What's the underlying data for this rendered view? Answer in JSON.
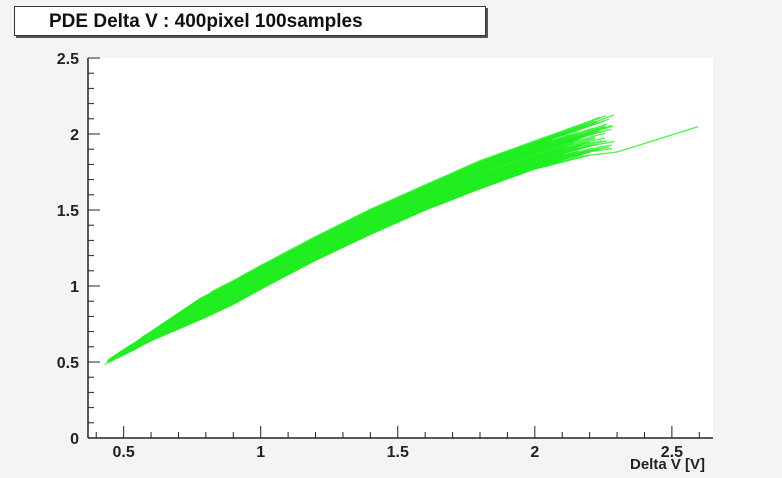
{
  "chart_data": {
    "type": "line",
    "title": "PDE Delta V : 400pixel 100samples",
    "xlabel": "Delta V [V]",
    "ylabel": "",
    "xlim": [
      0.37,
      2.65
    ],
    "ylim": [
      0,
      2.5
    ],
    "xticks": [
      "0.5",
      "1",
      "1.5",
      "2",
      "2.5"
    ],
    "xtick_values": [
      0.5,
      1,
      1.5,
      2,
      2.5
    ],
    "yticks": [
      "0",
      "0.5",
      "1",
      "1.5",
      "2",
      "2.5"
    ],
    "ytick_values": [
      0,
      0.5,
      1,
      1.5,
      2,
      2.5
    ],
    "grid": false,
    "series_color": "#22ee22",
    "series_count": 100,
    "band": {
      "x": [
        0.43,
        0.6,
        0.78,
        0.9,
        1.0,
        1.2,
        1.4,
        1.6,
        1.8,
        2.0,
        2.2,
        2.3,
        2.6
      ],
      "y_low": [
        0.48,
        0.64,
        0.78,
        0.88,
        0.98,
        1.17,
        1.34,
        1.5,
        1.64,
        1.77,
        1.86,
        1.88,
        2.05
      ],
      "y_high": [
        0.5,
        0.7,
        0.92,
        1.03,
        1.13,
        1.32,
        1.5,
        1.66,
        1.82,
        1.95,
        2.08,
        2.15,
        2.06
      ]
    }
  }
}
